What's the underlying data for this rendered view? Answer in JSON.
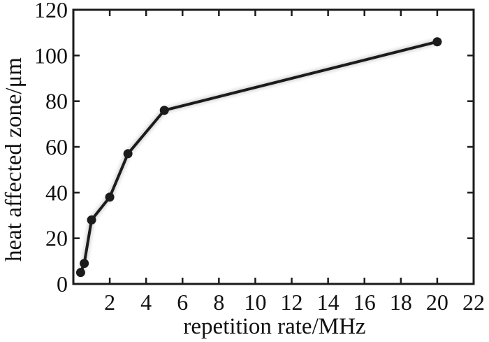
{
  "figure": {
    "background": "#ffffff",
    "ink_color": "#1b1b1b"
  },
  "chart_data": {
    "type": "line",
    "title": "",
    "xlabel": "repetition rate/MHz",
    "ylabel": "heat affected zone/μm",
    "x": [
      0.4,
      0.6,
      1,
      2,
      3,
      5,
      20
    ],
    "y": [
      5,
      9,
      28,
      38,
      57,
      76,
      106
    ],
    "xlim": [
      0,
      22
    ],
    "ylim": [
      0,
      120
    ],
    "x_ticks": [
      2,
      4,
      6,
      8,
      10,
      12,
      14,
      16,
      18,
      20,
      22
    ],
    "y_ticks": [
      0,
      20,
      40,
      60,
      80,
      100,
      120
    ],
    "grid": false,
    "legend_position": "none",
    "frame": "box",
    "tick_direction": "in",
    "line_color": "#1b1b1b",
    "marker": "filled-circle"
  }
}
